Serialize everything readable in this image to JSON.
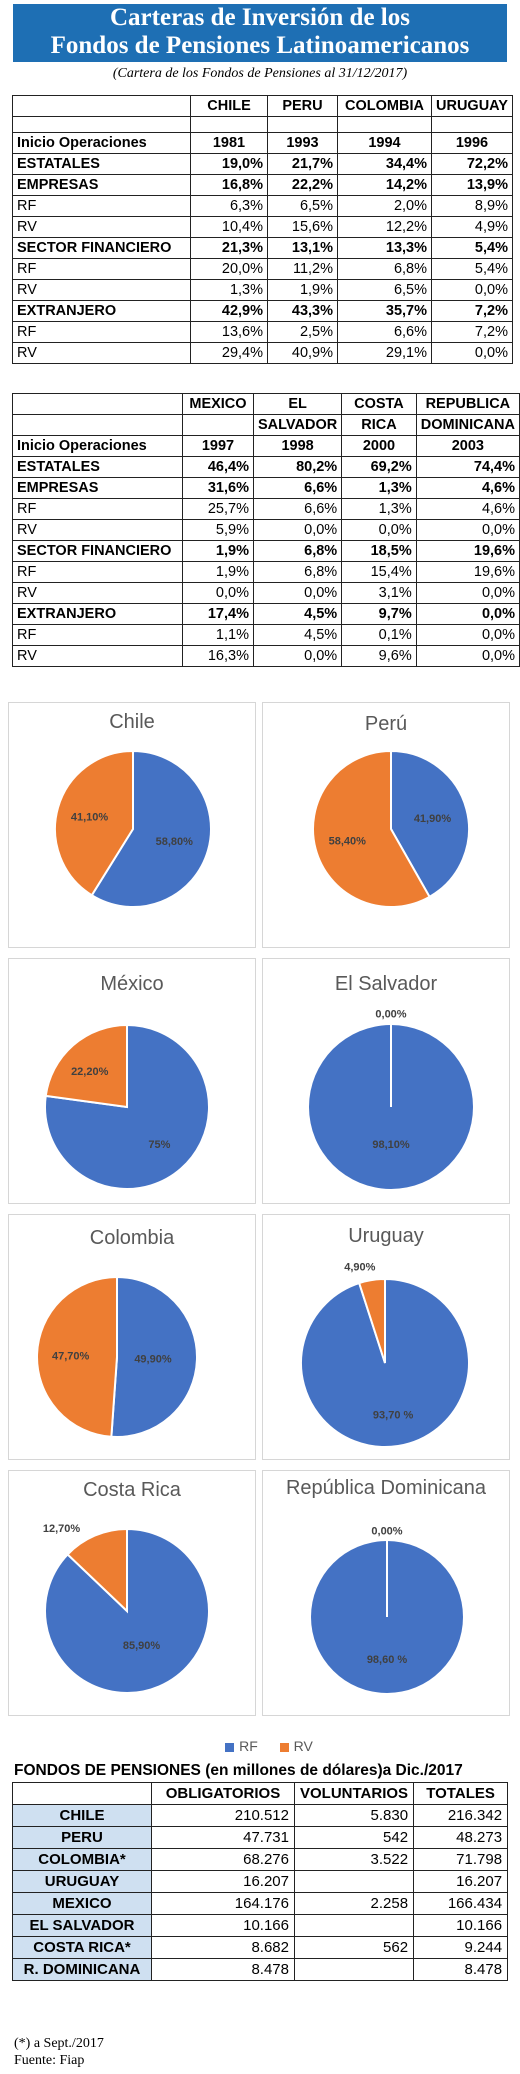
{
  "header": {
    "title_line1": "Carteras de Inversión de los",
    "title_line2": "Fondos de Pensiones Latinoamericanos",
    "subtitle": "(Cartera de los Fondos de Pensiones al 31/12/2017)"
  },
  "table1": {
    "countries": [
      "CHILE",
      "PERU",
      "COLOMBIA",
      "URUGUAY"
    ],
    "rows": [
      {
        "label": "Inicio Operaciones",
        "bold": true,
        "values": [
          "1981",
          "1993",
          "1994",
          "1996"
        ]
      },
      {
        "label": "ESTATALES",
        "bold": true,
        "values": [
          "19,0%",
          "21,7%",
          "34,4%",
          "72,2%"
        ]
      },
      {
        "label": "EMPRESAS",
        "bold": true,
        "values": [
          "16,8%",
          "22,2%",
          "14,2%",
          "13,9%"
        ]
      },
      {
        "label": "RF",
        "bold": false,
        "values": [
          "6,3%",
          "6,5%",
          "2,0%",
          "8,9%"
        ]
      },
      {
        "label": "RV",
        "bold": false,
        "values": [
          "10,4%",
          "15,6%",
          "12,2%",
          "4,9%"
        ]
      },
      {
        "label": "SECTOR FINANCIERO",
        "bold": true,
        "values": [
          "21,3%",
          "13,1%",
          "13,3%",
          "5,4%"
        ]
      },
      {
        "label": "RF",
        "bold": false,
        "values": [
          "20,0%",
          "11,2%",
          "6,8%",
          "5,4%"
        ]
      },
      {
        "label": "RV",
        "bold": false,
        "values": [
          "1,3%",
          "1,9%",
          "6,5%",
          "0,0%"
        ]
      },
      {
        "label": "EXTRANJERO",
        "bold": true,
        "values": [
          "42,9%",
          "43,3%",
          "35,7%",
          "7,2%"
        ]
      },
      {
        "label": "RF",
        "bold": false,
        "values": [
          "13,6%",
          "2,5%",
          "6,6%",
          "7,2%"
        ]
      },
      {
        "label": "RV",
        "bold": false,
        "values": [
          "29,4%",
          "40,9%",
          "29,1%",
          "0,0%"
        ]
      }
    ]
  },
  "table2": {
    "countries_line1": [
      "MEXICO",
      "EL",
      "COSTA",
      "REPUBLICA"
    ],
    "countries_line2": [
      "",
      "SALVADOR",
      "RICA",
      "DOMINICANA"
    ],
    "rows": [
      {
        "label": "Inicio Operaciones",
        "bold": true,
        "values": [
          "1997",
          "1998",
          "2000",
          "2003"
        ]
      },
      {
        "label": "ESTATALES",
        "bold": true,
        "values": [
          "46,4%",
          "80,2%",
          "69,2%",
          "74,4%"
        ]
      },
      {
        "label": "EMPRESAS",
        "bold": true,
        "values": [
          "31,6%",
          "6,6%",
          "1,3%",
          "4,6%"
        ]
      },
      {
        "label": "RF",
        "bold": false,
        "values": [
          "25,7%",
          "6,6%",
          "1,3%",
          "4,6%"
        ]
      },
      {
        "label": "RV",
        "bold": false,
        "values": [
          "5,9%",
          "0,0%",
          "0,0%",
          "0,0%"
        ]
      },
      {
        "label": "SECTOR FINANCIERO",
        "bold": true,
        "values": [
          "1,9%",
          "6,8%",
          "18,5%",
          "19,6%"
        ]
      },
      {
        "label": "RF",
        "bold": false,
        "values": [
          "1,9%",
          "6,8%",
          "15,4%",
          "19,6%"
        ]
      },
      {
        "label": "RV",
        "bold": false,
        "values": [
          "0,0%",
          "0,0%",
          "3,1%",
          "0,0%"
        ]
      },
      {
        "label": "EXTRANJERO",
        "bold": true,
        "values": [
          "17,4%",
          "4,5%",
          "9,7%",
          "0,0%"
        ]
      },
      {
        "label": "RF",
        "bold": false,
        "values": [
          "1,1%",
          "4,5%",
          "0,1%",
          "0,0%"
        ]
      },
      {
        "label": "RV",
        "bold": false,
        "values": [
          "16,3%",
          "0,0%",
          "9,6%",
          "0,0%"
        ]
      }
    ]
  },
  "colors": {
    "rf": "#4472c4",
    "rv": "#ed7d31",
    "banner": "#1e6fb4",
    "label_fill": "#cfe0f1"
  },
  "chart_data": [
    {
      "type": "pie",
      "title": "Chile",
      "categories": [
        "RF",
        "RV"
      ],
      "values": [
        58.8,
        41.1
      ],
      "labels": [
        "58,80%",
        "41,10%"
      ]
    },
    {
      "type": "pie",
      "title": "Perú",
      "categories": [
        "RF",
        "RV"
      ],
      "values": [
        41.9,
        58.4
      ],
      "labels": [
        "41,90%",
        "58,40%"
      ]
    },
    {
      "type": "pie",
      "title": "México",
      "categories": [
        "RF",
        "RV"
      ],
      "values": [
        75,
        22.2
      ],
      "labels": [
        "75%",
        "22,20%"
      ]
    },
    {
      "type": "pie",
      "title": "El Salvador",
      "categories": [
        "RF",
        "RV"
      ],
      "values": [
        98.1,
        0.0
      ],
      "labels": [
        "98,10%",
        "0,00%"
      ]
    },
    {
      "type": "pie",
      "title": "Colombia",
      "categories": [
        "RF",
        "RV"
      ],
      "values": [
        49.9,
        47.7
      ],
      "labels": [
        "49,90%",
        "47,70%"
      ]
    },
    {
      "type": "pie",
      "title": "Uruguay",
      "categories": [
        "RF",
        "RV"
      ],
      "values": [
        93.7,
        4.9
      ],
      "labels": [
        "93,70 %",
        "4,90%"
      ]
    },
    {
      "type": "pie",
      "title": "Costa Rica",
      "categories": [
        "RF",
        "RV"
      ],
      "values": [
        85.9,
        12.7
      ],
      "labels": [
        "85,90%",
        "12,70%"
      ]
    },
    {
      "type": "pie",
      "title": "República Dominicana",
      "categories": [
        "RF",
        "RV"
      ],
      "values": [
        98.6,
        0.0
      ],
      "labels": [
        "98,60 %",
        "0,00%"
      ]
    }
  ],
  "legend": [
    "RF",
    "RV"
  ],
  "funds": {
    "title": "FONDOS DE PENSIONES (en millones de dólares)a Dic./2017",
    "headers": [
      "OBLIGATORIOS",
      "VOLUNTARIOS",
      "TOTALES"
    ],
    "rows": [
      {
        "label": "CHILE",
        "values": [
          "210.512",
          "5.830",
          "216.342"
        ]
      },
      {
        "label": "PERU",
        "values": [
          "47.731",
          "542",
          "48.273"
        ]
      },
      {
        "label": "COLOMBIA*",
        "values": [
          "68.276",
          "3.522",
          "71.798"
        ]
      },
      {
        "label": "URUGUAY",
        "values": [
          "16.207",
          "",
          "16.207"
        ]
      },
      {
        "label": "MEXICO",
        "values": [
          "164.176",
          "2.258",
          "166.434"
        ]
      },
      {
        "label": "EL SALVADOR",
        "values": [
          "10.166",
          "",
          "10.166"
        ]
      },
      {
        "label": "COSTA RICA*",
        "values": [
          "8.682",
          "562",
          "9.244"
        ]
      },
      {
        "label": "R. DOMINICANA",
        "values": [
          "8.478",
          "",
          "8.478"
        ]
      }
    ]
  },
  "footnote": "(*) a Sept./2017",
  "source": "Fuente: Fiap"
}
